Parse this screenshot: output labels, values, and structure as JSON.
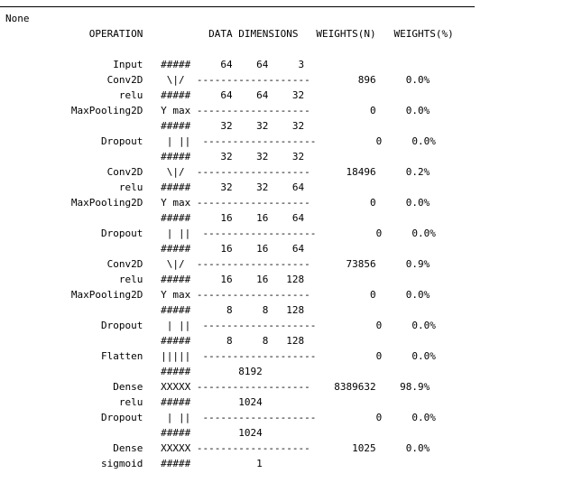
{
  "output": {
    "none_text": "None",
    "header": "              OPERATION           DATA DIMENSIONS   WEIGHTS(N)   WEIGHTS(%)",
    "rows": [
      "                  Input   #####     64    64     3",
      "                 Conv2D    \\|/  -------------------        896     0.0%",
      "                   relu   #####     64    64    32",
      "           MaxPooling2D   Y max -------------------          0     0.0%",
      "                          #####     32    32    32",
      "                Dropout    | ||  -------------------          0     0.0%",
      "                          #####     32    32    32",
      "                 Conv2D    \\|/  -------------------      18496     0.2%",
      "                   relu   #####     32    32    64",
      "           MaxPooling2D   Y max -------------------          0     0.0%",
      "                          #####     16    16    64",
      "                Dropout    | ||  -------------------          0     0.0%",
      "                          #####     16    16    64",
      "                 Conv2D    \\|/  -------------------      73856     0.9%",
      "                   relu   #####     16    16   128",
      "           MaxPooling2D   Y max -------------------          0     0.0%",
      "                          #####      8     8   128",
      "                Dropout    | ||  -------------------          0     0.0%",
      "                          #####      8     8   128",
      "                Flatten   |||||  -------------------          0     0.0%",
      "                          #####        8192",
      "                  Dense   XXXXX -------------------    8389632    98.9%",
      "                   relu   #####        1024",
      "                Dropout    | ||  -------------------          0     0.0%",
      "                          #####        1024",
      "                  Dense   XXXXX -------------------       1025     0.0%",
      "                sigmoid   #####           1"
    ]
  }
}
